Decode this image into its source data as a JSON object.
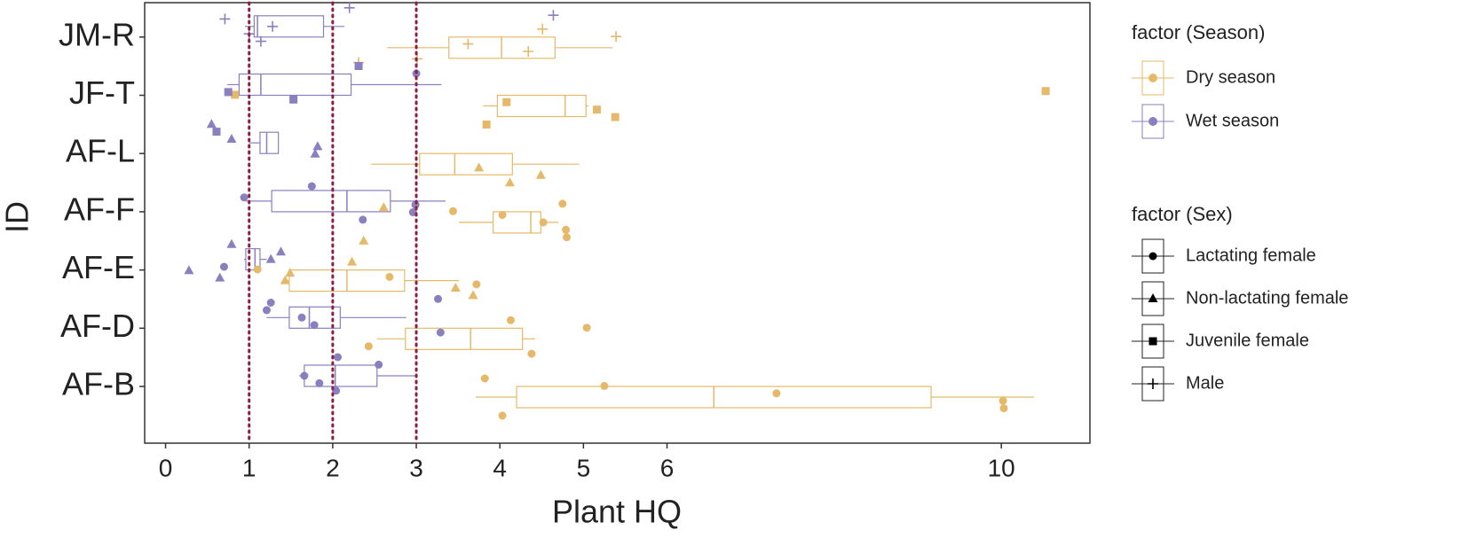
{
  "chart_data": {
    "type": "boxplot",
    "x_label": "Plant HQ",
    "y_label": "ID",
    "categories": [
      "AF-B",
      "AF-D",
      "AF-E",
      "AF-F",
      "AF-L",
      "JF-T",
      "JM-R"
    ],
    "xlim": [
      -0.25,
      11.06
    ],
    "xticks": [
      0,
      1,
      2,
      3,
      4,
      5,
      6,
      10
    ],
    "reference_lines": [
      1,
      2,
      3
    ],
    "reference_color": "#8b2040",
    "legend_season_title": "factor (Season)",
    "legend_sex_title": "factor (Sex)",
    "sexes": [
      {
        "name": "Lactating female",
        "shape": "circle"
      },
      {
        "name": "Non-lactating female",
        "shape": "triangle"
      },
      {
        "name": "Juvenile female",
        "shape": "square"
      },
      {
        "name": "Male",
        "shape": "plus"
      }
    ],
    "series": [
      {
        "name": "Dry season",
        "color": "#e6b96a",
        "boxes": [
          {
            "min": 3.71,
            "q1": 4.2,
            "median": 6.56,
            "q3": 9.16,
            "max": 10.39
          },
          {
            "min": 2.53,
            "q1": 2.87,
            "median": 3.65,
            "q3": 4.27,
            "max": 4.42
          },
          {
            "min": 1.45,
            "q1": 1.48,
            "median": 2.17,
            "q3": 2.86,
            "max": 3.51
          },
          {
            "min": 3.51,
            "q1": 3.92,
            "median": 4.37,
            "q3": 4.49,
            "max": 4.7
          },
          {
            "min": 2.46,
            "q1": 3.04,
            "median": 3.46,
            "q3": 4.15,
            "max": 4.95
          },
          {
            "min": 3.8,
            "q1": 3.97,
            "median": 4.78,
            "q3": 5.03,
            "max": 5.06
          },
          {
            "min": 2.65,
            "q1": 3.39,
            "median": 4.02,
            "q3": 4.66,
            "max": 5.35
          }
        ],
        "points": [
          [
            {
              "value": 3.82,
              "sex": 0
            },
            {
              "value": 5.25,
              "sex": 0
            },
            {
              "value": 7.31,
              "sex": 0
            },
            {
              "value": 10.02,
              "sex": 0
            },
            {
              "value": 10.03,
              "sex": 0
            },
            {
              "value": 4.03,
              "sex": 0
            }
          ],
          [
            {
              "value": 2.43,
              "sex": 0
            },
            {
              "value": 4.38,
              "sex": 0
            },
            {
              "value": 4.13,
              "sex": 0
            },
            {
              "value": 5.04,
              "sex": 0
            }
          ],
          [
            {
              "value": 1.49,
              "sex": 1
            },
            {
              "value": 1.43,
              "sex": 1
            },
            {
              "value": 3.47,
              "sex": 1
            },
            {
              "value": 3.68,
              "sex": 1
            },
            {
              "value": 2.23,
              "sex": 1
            },
            {
              "value": 1.1,
              "sex": 0
            },
            {
              "value": 2.68,
              "sex": 0
            },
            {
              "value": 3.72,
              "sex": 0
            }
          ],
          [
            {
              "value": 2.37,
              "sex": 1
            },
            {
              "value": 2.61,
              "sex": 1
            },
            {
              "value": 4.03,
              "sex": 0
            },
            {
              "value": 4.52,
              "sex": 0
            },
            {
              "value": 4.79,
              "sex": 0
            },
            {
              "value": 4.8,
              "sex": 0
            },
            {
              "value": 4.75,
              "sex": 0
            },
            {
              "value": 3.44,
              "sex": 0
            }
          ],
          [
            {
              "value": 3.75,
              "sex": 1
            },
            {
              "value": 4.49,
              "sex": 1
            },
            {
              "value": 4.12,
              "sex": 1
            }
          ],
          [
            {
              "value": 0.83,
              "sex": 2
            },
            {
              "value": 4.08,
              "sex": 2
            },
            {
              "value": 5.16,
              "sex": 2
            },
            {
              "value": 5.38,
              "sex": 2
            },
            {
              "value": 3.84,
              "sex": 2
            },
            {
              "value": 10.53,
              "sex": 2
            }
          ],
          [
            {
              "value": 2.31,
              "sex": 3
            },
            {
              "value": 4.51,
              "sex": 3
            },
            {
              "value": 5.39,
              "sex": 3
            },
            {
              "value": 3.62,
              "sex": 3
            },
            {
              "value": 4.34,
              "sex": 3
            },
            {
              "value": 3.01,
              "sex": 3
            }
          ]
        ]
      },
      {
        "name": "Wet season",
        "color": "#8a7fbf",
        "boxes": [
          {
            "min": 1.6,
            "q1": 1.66,
            "median": 2.03,
            "q3": 2.53,
            "max": 3.01
          },
          {
            "min": 1.21,
            "q1": 1.48,
            "median": 1.72,
            "q3": 2.09,
            "max": 2.88
          },
          {
            "min": 0.94,
            "q1": 0.96,
            "median": 1.07,
            "q3": 1.13,
            "max": 1.21
          },
          {
            "min": 0.96,
            "q1": 1.27,
            "median": 2.17,
            "q3": 2.69,
            "max": 3.35
          },
          {
            "min": 1.0,
            "q1": 1.13,
            "median": 1.21,
            "q3": 1.35,
            "max": 1.35
          },
          {
            "min": 0.74,
            "q1": 0.88,
            "median": 1.14,
            "q3": 2.22,
            "max": 3.3
          },
          {
            "min": 0.95,
            "q1": 1.06,
            "median": 1.1,
            "q3": 1.89,
            "max": 2.14
          }
        ],
        "points": [
          [
            {
              "value": 1.66,
              "sex": 0
            },
            {
              "value": 1.84,
              "sex": 0
            },
            {
              "value": 2.04,
              "sex": 0
            },
            {
              "value": 2.06,
              "sex": 0
            },
            {
              "value": 2.55,
              "sex": 0
            }
          ],
          [
            {
              "value": 1.26,
              "sex": 0
            },
            {
              "value": 1.21,
              "sex": 0
            },
            {
              "value": 1.63,
              "sex": 0
            },
            {
              "value": 1.78,
              "sex": 0
            },
            {
              "value": 3.29,
              "sex": 0
            },
            {
              "value": 3.26,
              "sex": 0
            }
          ],
          [
            {
              "value": 0.28,
              "sex": 1
            },
            {
              "value": 0.65,
              "sex": 1
            },
            {
              "value": 0.79,
              "sex": 1
            },
            {
              "value": 1.38,
              "sex": 1
            },
            {
              "value": 1.26,
              "sex": 1
            },
            {
              "value": 0.7,
              "sex": 0
            }
          ],
          [
            {
              "value": 0.94,
              "sex": 0
            },
            {
              "value": 2.99,
              "sex": 0
            },
            {
              "value": 2.96,
              "sex": 0
            },
            {
              "value": 2.36,
              "sex": 0
            },
            {
              "value": 1.75,
              "sex": 0
            }
          ],
          [
            {
              "value": 0.55,
              "sex": 1
            },
            {
              "value": 0.61,
              "sex": 2
            },
            {
              "value": 0.79,
              "sex": 1
            },
            {
              "value": 1.82,
              "sex": 1
            },
            {
              "value": 1.79,
              "sex": 1
            }
          ],
          [
            {
              "value": 0.75,
              "sex": 2
            },
            {
              "value": 1.53,
              "sex": 2
            },
            {
              "value": 2.31,
              "sex": 2
            },
            {
              "value": 3.0,
              "sex": 0
            }
          ],
          [
            {
              "value": 0.71,
              "sex": 3
            },
            {
              "value": 1.28,
              "sex": 3
            },
            {
              "value": 1.0,
              "sex": 3
            },
            {
              "value": 1.14,
              "sex": 3
            },
            {
              "value": 2.2,
              "sex": 3
            },
            {
              "value": 4.64,
              "sex": 3
            }
          ]
        ]
      }
    ]
  }
}
